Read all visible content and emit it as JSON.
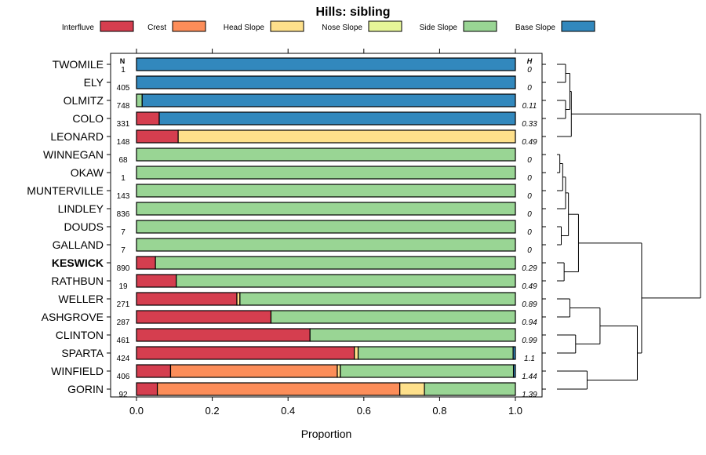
{
  "chart_data": {
    "type": "stacked-bar",
    "title": "Hills: sibling",
    "xlabel": "Proportion",
    "xlim": [
      0,
      1
    ],
    "x_ticks": [
      "0.0",
      "0.2",
      "0.4",
      "0.6",
      "0.8",
      "1.0"
    ],
    "x_tick_values": [
      0,
      0.2,
      0.4,
      0.6,
      0.8,
      1.0
    ],
    "n_header": "N",
    "h_header": "H",
    "highlight": "KESWICK",
    "legend": [
      {
        "name": "Interfluve",
        "color": "#D53E4F"
      },
      {
        "name": "Crest",
        "color": "#FC8D59"
      },
      {
        "name": "Head Slope",
        "color": "#FEE08B"
      },
      {
        "name": "Nose Slope",
        "color": "#E6F598"
      },
      {
        "name": "Side Slope",
        "color": "#99D594"
      },
      {
        "name": "Base Slope",
        "color": "#3288BD"
      }
    ],
    "rows": [
      {
        "name": "TWOMILE",
        "n": "1",
        "h": "0",
        "values": [
          0,
          0,
          0,
          0,
          0,
          1.0
        ]
      },
      {
        "name": "ELY",
        "n": "405",
        "h": "0",
        "values": [
          0,
          0,
          0,
          0,
          0,
          1.0
        ]
      },
      {
        "name": "OLMITZ",
        "n": "748",
        "h": "0.11",
        "values": [
          0,
          0,
          0,
          0,
          0.015,
          0.985
        ]
      },
      {
        "name": "COLO",
        "n": "331",
        "h": "0.33",
        "values": [
          0.06,
          0,
          0,
          0,
          0,
          0.94
        ]
      },
      {
        "name": "LEONARD",
        "n": "148",
        "h": "0.49",
        "values": [
          0.11,
          0,
          0.89,
          0,
          0,
          0
        ]
      },
      {
        "name": "WINNEGAN",
        "n": "68",
        "h": "0",
        "values": [
          0,
          0,
          0,
          0,
          1.0,
          0
        ]
      },
      {
        "name": "OKAW",
        "n": "1",
        "h": "0",
        "values": [
          0,
          0,
          0,
          0,
          1.0,
          0
        ]
      },
      {
        "name": "MUNTERVILLE",
        "n": "143",
        "h": "0",
        "values": [
          0,
          0,
          0,
          0,
          1.0,
          0
        ]
      },
      {
        "name": "LINDLEY",
        "n": "836",
        "h": "0",
        "values": [
          0,
          0,
          0,
          0,
          1.0,
          0
        ]
      },
      {
        "name": "DOUDS",
        "n": "7",
        "h": "0",
        "values": [
          0,
          0,
          0,
          0,
          1.0,
          0
        ]
      },
      {
        "name": "GALLAND",
        "n": "7",
        "h": "0",
        "values": [
          0,
          0,
          0,
          0,
          1.0,
          0
        ]
      },
      {
        "name": "KESWICK",
        "n": "890",
        "h": "0.29",
        "values": [
          0.05,
          0,
          0,
          0,
          0.95,
          0
        ]
      },
      {
        "name": "RATHBUN",
        "n": "19",
        "h": "0.49",
        "values": [
          0.105,
          0,
          0,
          0,
          0.895,
          0
        ]
      },
      {
        "name": "WELLER",
        "n": "271",
        "h": "0.89",
        "values": [
          0.265,
          0,
          0.008,
          0,
          0.727,
          0
        ]
      },
      {
        "name": "ASHGROVE",
        "n": "287",
        "h": "0.94",
        "values": [
          0.355,
          0,
          0,
          0,
          0.645,
          0
        ]
      },
      {
        "name": "CLINTON",
        "n": "461",
        "h": "0.99",
        "values": [
          0.458,
          0,
          0,
          0,
          0.542,
          0
        ]
      },
      {
        "name": "SPARTA",
        "n": "424",
        "h": "1.1",
        "values": [
          0.575,
          0,
          0.01,
          0,
          0.409,
          0.006
        ]
      },
      {
        "name": "WINFIELD",
        "n": "406",
        "h": "1.44",
        "values": [
          0.09,
          0.44,
          0.008,
          0,
          0.457,
          0.005
        ]
      },
      {
        "name": "GORIN",
        "n": "92",
        "h": "1.39",
        "values": [
          0.055,
          0.64,
          0.065,
          0,
          0.24,
          0
        ]
      }
    ]
  }
}
